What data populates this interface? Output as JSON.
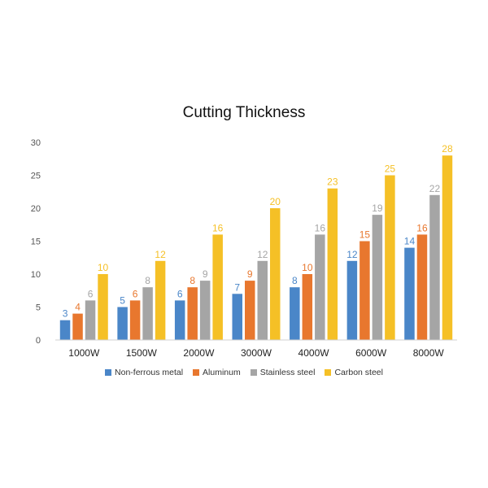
{
  "chart_data": {
    "type": "bar",
    "title": "Cutting Thickness",
    "categories": [
      "1000W",
      "1500W",
      "2000W",
      "3000W",
      "4000W",
      "6000W",
      "8000W"
    ],
    "series": [
      {
        "name": "Non-ferrous metal",
        "color": "#4a86c8",
        "values": [
          3,
          5,
          6,
          7,
          8,
          12,
          14
        ]
      },
      {
        "name": "Aluminum",
        "color": "#e8772e",
        "values": [
          4,
          6,
          8,
          9,
          10,
          15,
          16
        ]
      },
      {
        "name": "Stainless steel",
        "color": "#a5a5a5",
        "values": [
          6,
          8,
          9,
          12,
          16,
          19,
          22
        ]
      },
      {
        "name": "Carbon steel",
        "color": "#f5c026",
        "values": [
          10,
          12,
          16,
          20,
          23,
          25,
          28
        ]
      }
    ],
    "yticks": [
      0,
      5,
      10,
      15,
      20,
      25,
      30
    ],
    "ylim": [
      0,
      30
    ],
    "grid": false,
    "legend_position": "bottom",
    "data_labels": true
  }
}
